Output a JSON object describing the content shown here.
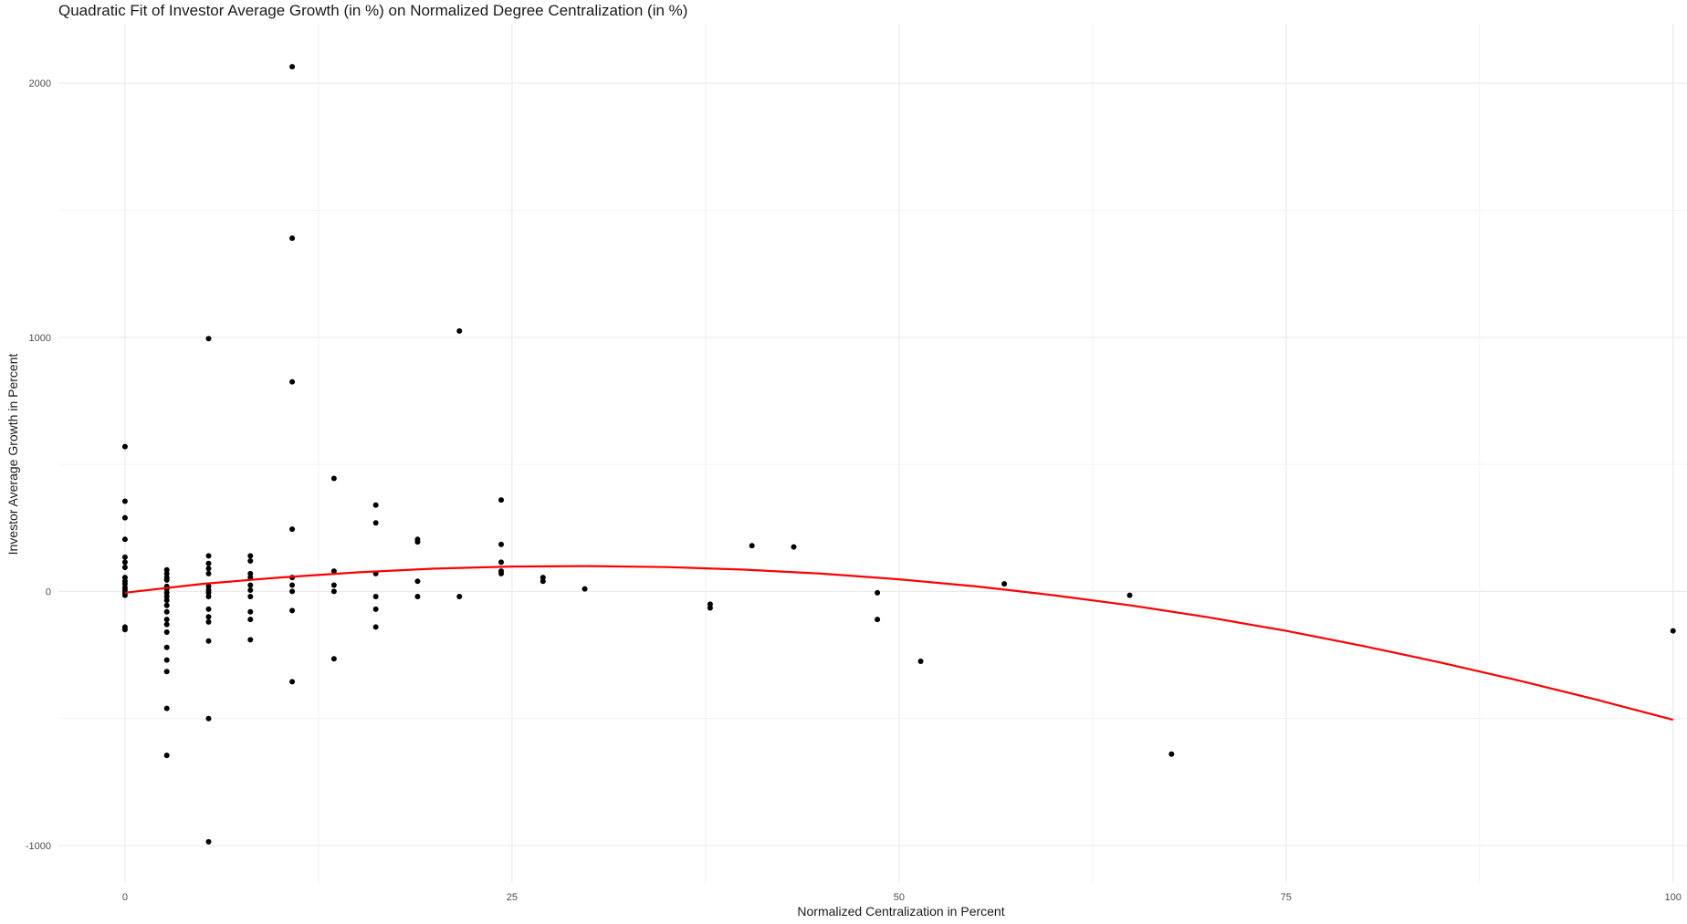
{
  "chart_data": {
    "type": "scatter",
    "title": "Quadratic Fit of Investor Average Growth (in %) on Normalized Degree Centralization (in %)",
    "xlabel": "Normalized Centralization in Percent",
    "ylabel": "Investor Average Growth in Percent",
    "xlim": [
      -4.3,
      100.9
    ],
    "ylim": [
      -1147,
      2234
    ],
    "x_ticks": [
      0,
      25,
      50,
      75,
      100
    ],
    "x_tick_labels": [
      "0",
      "25",
      "50",
      "75",
      "100"
    ],
    "y_ticks": [
      -1000,
      0,
      1000,
      2000
    ],
    "y_tick_labels": [
      "-1000",
      "0",
      "1000",
      "2000"
    ],
    "x_minor_grid": [
      12.5,
      37.5,
      62.5,
      87.5
    ],
    "y_minor_grid": [
      -500,
      500,
      1500
    ],
    "grid": true,
    "legend": "none",
    "point_color": "#000000",
    "fit_color": "#ff0000",
    "series": [
      {
        "type": "scatter",
        "points": [
          [
            0,
            570
          ],
          [
            0,
            355
          ],
          [
            0,
            290
          ],
          [
            0,
            205
          ],
          [
            0,
            135
          ],
          [
            0,
            115
          ],
          [
            0,
            95
          ],
          [
            0,
            55
          ],
          [
            0,
            40
          ],
          [
            0,
            30
          ],
          [
            0,
            15
          ],
          [
            0,
            5
          ],
          [
            0,
            -5
          ],
          [
            0,
            -15
          ],
          [
            0,
            -140
          ],
          [
            0,
            -150
          ],
          [
            2.7,
            85
          ],
          [
            2.7,
            70
          ],
          [
            2.7,
            55
          ],
          [
            2.7,
            45
          ],
          [
            2.7,
            20
          ],
          [
            2.7,
            10
          ],
          [
            2.7,
            -5
          ],
          [
            2.7,
            -20
          ],
          [
            2.7,
            -35
          ],
          [
            2.7,
            -55
          ],
          [
            2.7,
            -80
          ],
          [
            2.7,
            -110
          ],
          [
            2.7,
            -130
          ],
          [
            2.7,
            -160
          ],
          [
            2.7,
            -220
          ],
          [
            2.7,
            -270
          ],
          [
            2.7,
            -315
          ],
          [
            2.7,
            -460
          ],
          [
            2.7,
            -645
          ],
          [
            5.4,
            995
          ],
          [
            5.4,
            140
          ],
          [
            5.4,
            110
          ],
          [
            5.4,
            90
          ],
          [
            5.4,
            70
          ],
          [
            5.4,
            20
          ],
          [
            5.4,
            5
          ],
          [
            5.4,
            -5
          ],
          [
            5.4,
            -20
          ],
          [
            5.4,
            -70
          ],
          [
            5.4,
            -100
          ],
          [
            5.4,
            -120
          ],
          [
            5.4,
            -195
          ],
          [
            5.4,
            -500
          ],
          [
            5.4,
            -985
          ],
          [
            8.1,
            140
          ],
          [
            8.1,
            120
          ],
          [
            8.1,
            70
          ],
          [
            8.1,
            55
          ],
          [
            8.1,
            25
          ],
          [
            8.1,
            5
          ],
          [
            8.1,
            -20
          ],
          [
            8.1,
            -80
          ],
          [
            8.1,
            -110
          ],
          [
            8.1,
            -190
          ],
          [
            10.8,
            2065
          ],
          [
            10.8,
            1390
          ],
          [
            10.8,
            825
          ],
          [
            10.8,
            245
          ],
          [
            10.8,
            55
          ],
          [
            10.8,
            25
          ],
          [
            10.8,
            0
          ],
          [
            10.8,
            -75
          ],
          [
            10.8,
            -355
          ],
          [
            13.5,
            445
          ],
          [
            13.5,
            80
          ],
          [
            13.5,
            25
          ],
          [
            13.5,
            0
          ],
          [
            13.5,
            -265
          ],
          [
            16.2,
            340
          ],
          [
            16.2,
            270
          ],
          [
            16.2,
            70
          ],
          [
            16.2,
            -20
          ],
          [
            16.2,
            -70
          ],
          [
            16.2,
            -140
          ],
          [
            18.9,
            205
          ],
          [
            18.9,
            195
          ],
          [
            18.9,
            40
          ],
          [
            18.9,
            -20
          ],
          [
            21.6,
            1025
          ],
          [
            21.6,
            -20
          ],
          [
            24.3,
            360
          ],
          [
            24.3,
            185
          ],
          [
            24.3,
            115
          ],
          [
            24.3,
            80
          ],
          [
            24.3,
            70
          ],
          [
            27,
            55
          ],
          [
            27,
            40
          ],
          [
            29.7,
            10
          ],
          [
            37.8,
            -50
          ],
          [
            37.8,
            -65
          ],
          [
            40.5,
            180
          ],
          [
            43.2,
            175
          ],
          [
            48.6,
            -5
          ],
          [
            48.6,
            -110
          ],
          [
            51.4,
            -275
          ],
          [
            56.8,
            30
          ],
          [
            64.9,
            -15
          ],
          [
            67.6,
            -640
          ],
          [
            100,
            -155
          ]
        ]
      },
      {
        "type": "line",
        "name_hidden": true,
        "x": [
          0,
          5,
          10,
          15,
          20,
          25,
          30,
          35,
          40,
          45,
          50,
          55,
          60,
          65,
          70,
          75,
          80,
          85,
          90,
          95,
          100
        ],
        "y": [
          -5,
          30,
          55,
          75,
          90,
          98,
          100,
          96,
          86,
          70,
          48,
          20,
          -15,
          -55,
          -102,
          -155,
          -215,
          -280,
          -350,
          -425,
          -505
        ]
      }
    ]
  }
}
